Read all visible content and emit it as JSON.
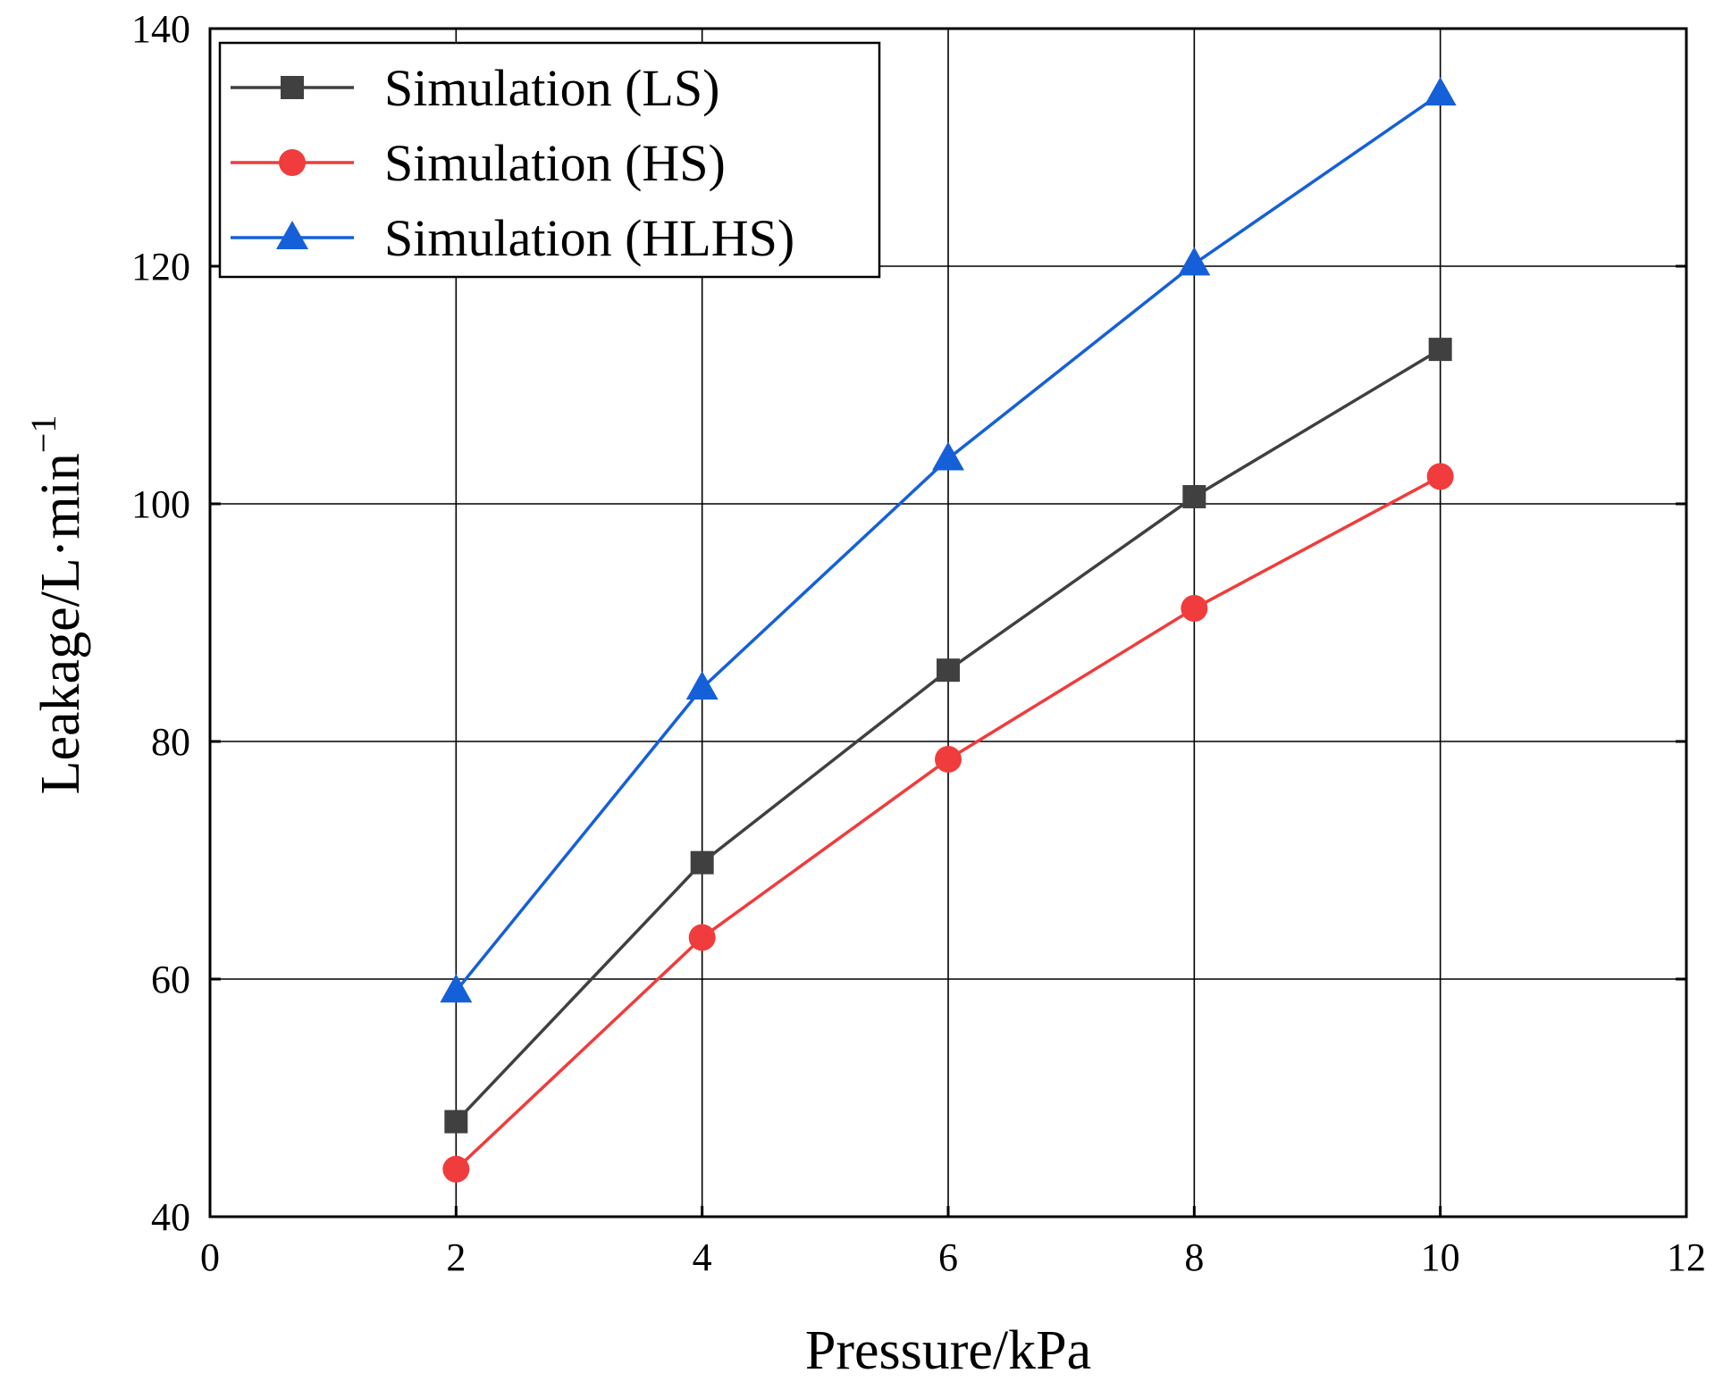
{
  "chart_data": {
    "type": "line",
    "title": "",
    "xlabel": "Pressure/kPa",
    "ylabel": "Leakage/L·min",
    "ylabel_superscript": "−1",
    "xlim": [
      0,
      12
    ],
    "ylim": [
      40,
      140
    ],
    "xticks": [
      0,
      2,
      4,
      6,
      8,
      10,
      12
    ],
    "yticks": [
      40,
      60,
      80,
      100,
      120,
      140
    ],
    "grid": true,
    "legend_position": "top-left",
    "x": [
      2,
      4,
      6,
      8,
      10
    ],
    "series": [
      {
        "name": "Simulation (LS)",
        "color": "#404040",
        "marker": "square",
        "values": [
          48.0,
          69.8,
          86.0,
          100.6,
          113.0
        ]
      },
      {
        "name": "Simulation (HS)",
        "color": "#f03c3c",
        "marker": "circle",
        "values": [
          44.0,
          63.5,
          78.5,
          91.2,
          102.3
        ]
      },
      {
        "name": "Simulation (HLHS)",
        "color": "#1560d8",
        "marker": "triangle",
        "values": [
          59.0,
          84.5,
          103.8,
          120.2,
          134.5
        ]
      }
    ]
  }
}
